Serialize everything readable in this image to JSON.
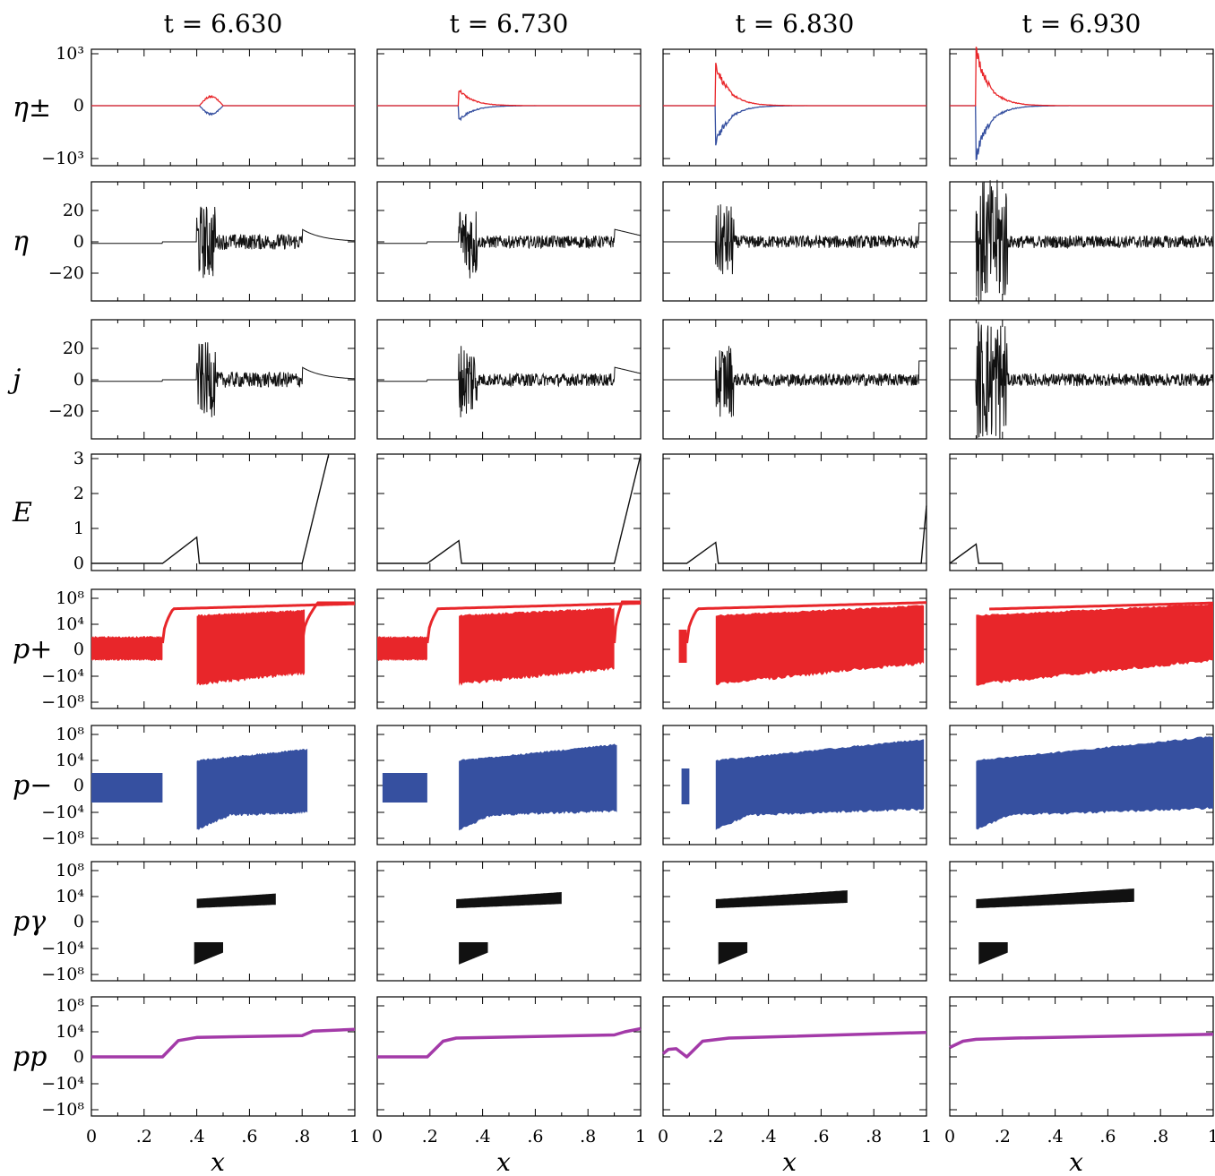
{
  "chart_data": {
    "type": "line",
    "columns": [
      {
        "title": "t = 6.630",
        "t": 6.63
      },
      {
        "title": "t = 6.730",
        "t": 6.73
      },
      {
        "title": "t = 6.830",
        "t": 6.83
      },
      {
        "title": "t = 6.930",
        "t": 6.93
      }
    ],
    "xlabel": "x",
    "xlim": [
      0,
      1
    ],
    "xticks": [
      0,
      0.2,
      0.4,
      0.6,
      0.8,
      1
    ],
    "xticklabels": [
      "0",
      ".2",
      ".4",
      ".6",
      ".8",
      "1"
    ],
    "rows": [
      {
        "key": "eta_pm",
        "label": "η±",
        "color_pos": "#e8262a",
        "color_neg": "#3650a0",
        "ytick_labels": [
          "10³",
          "0",
          "−10³"
        ],
        "scale": "symlog"
      },
      {
        "key": "eta",
        "label": "η",
        "color": "#111111",
        "ytick_labels": [
          "20",
          "0",
          "−20"
        ],
        "ylim": [
          -35,
          35
        ]
      },
      {
        "key": "j",
        "label": "j",
        "color": "#111111",
        "ytick_labels": [
          "20",
          "0",
          "−20"
        ],
        "ylim": [
          -35,
          35
        ]
      },
      {
        "key": "E",
        "label": "E",
        "color": "#111111",
        "ytick_labels": [
          "3",
          "2",
          "1",
          "0"
        ],
        "ylim": [
          -0.2,
          3.1
        ]
      },
      {
        "key": "p_plus",
        "label": "p+",
        "color": "#e8262a",
        "ytick_labels": [
          "10⁸",
          "10⁴",
          "0",
          "−10⁴",
          "−10⁸"
        ],
        "scale": "symlog"
      },
      {
        "key": "p_minus",
        "label": "p−",
        "color": "#3650a0",
        "ytick_labels": [
          "10⁸",
          "10⁴",
          "0",
          "−10⁴",
          "−10⁸"
        ],
        "scale": "symlog"
      },
      {
        "key": "p_gamma",
        "label": "pγ",
        "color": "#111111",
        "ytick_labels": [
          "10⁸",
          "10⁴",
          "0",
          "−10⁴",
          "−10⁸"
        ],
        "scale": "symlog"
      },
      {
        "key": "p_p",
        "label": "pp",
        "color": "#a33aa8",
        "ytick_labels": [
          "10⁸",
          "10⁴",
          "0",
          "−10⁴",
          "−10⁸"
        ],
        "scale": "symlog"
      }
    ],
    "series": {
      "E": [
        {
          "column": 0,
          "x": [
            0,
            0.27,
            0.4,
            0.41,
            0.8,
            0.9
          ],
          "y": [
            0,
            0,
            0.75,
            0,
            0,
            3.1
          ]
        },
        {
          "column": 1,
          "x": [
            0,
            0.19,
            0.31,
            0.32,
            0.9,
            1.0
          ],
          "y": [
            0,
            0,
            0.65,
            0,
            0,
            3.1
          ]
        },
        {
          "column": 2,
          "x": [
            0,
            0.09,
            0.2,
            0.21,
            0.98,
            1.0
          ],
          "y": [
            0,
            0,
            0.6,
            0,
            0,
            1.65
          ]
        },
        {
          "column": 3,
          "x": [
            0,
            0.1,
            0.11,
            0.2
          ],
          "y": [
            0,
            0.55,
            0,
            0
          ]
        }
      ],
      "p_p": [
        {
          "column": 0,
          "x": [
            0,
            0.27,
            0.33,
            0.4,
            0.8,
            0.84,
            1.0
          ],
          "y": [
            0,
            0,
            2.6,
            3.1,
            3.4,
            4.1,
            4.4
          ]
        },
        {
          "column": 1,
          "x": [
            0,
            0.19,
            0.25,
            0.3,
            0.9,
            0.94,
            1.0
          ],
          "y": [
            0,
            0,
            2.5,
            3.0,
            3.5,
            4.0,
            4.5
          ]
        },
        {
          "column": 2,
          "x": [
            0,
            0.02,
            0.05,
            0.09,
            0.15,
            0.25,
            1.0
          ],
          "y": [
            0.5,
            1.2,
            1.3,
            0,
            2.5,
            3.0,
            3.9
          ]
        },
        {
          "column": 3,
          "x": [
            0,
            0.05,
            0.1,
            0.25,
            1.0
          ],
          "y": [
            1.5,
            2.5,
            2.8,
            3.0,
            3.6
          ]
        }
      ]
    }
  }
}
